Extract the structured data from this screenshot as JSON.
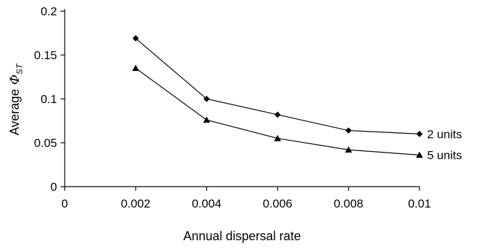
{
  "chart_data": {
    "type": "line",
    "xlabel": "Annual dispersal rate",
    "ylabel": "Average",
    "ylabel_symbol": "Φ",
    "ylabel_subscript": "ST",
    "xlim": [
      0,
      0.01
    ],
    "ylim": [
      0,
      0.2
    ],
    "xticks": [
      "0",
      "0.002",
      "0.004",
      "0.006",
      "0.008",
      "0.01"
    ],
    "yticks": [
      "0",
      "0.05",
      "0.1",
      "0.15",
      "0.2"
    ],
    "x": [
      0.002,
      0.004,
      0.006,
      0.008,
      0.01
    ],
    "series": [
      {
        "name": "2 units",
        "marker": "diamond",
        "values": [
          0.169,
          0.1,
          0.082,
          0.064,
          0.06
        ]
      },
      {
        "name": "5 units",
        "marker": "triangle",
        "values": [
          0.135,
          0.076,
          0.055,
          0.042,
          0.036
        ]
      }
    ],
    "grid": false,
    "legend": "inline-right",
    "colors": {
      "line": "#000000",
      "marker": "#000000",
      "background": "#ffffff"
    }
  }
}
